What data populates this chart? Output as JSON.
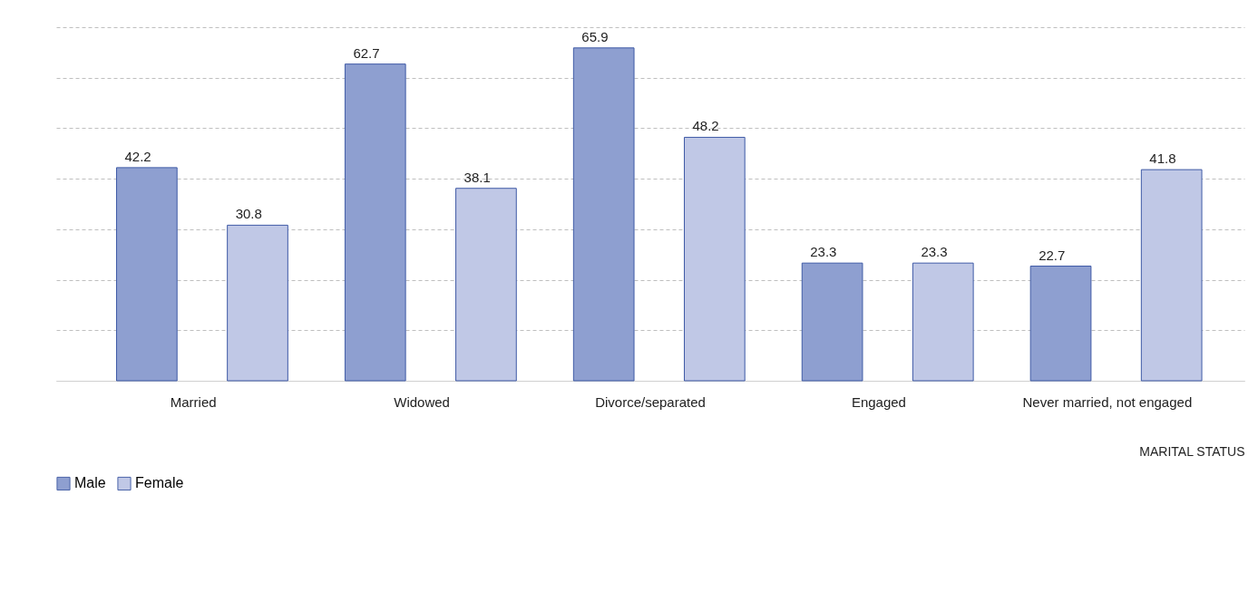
{
  "chart_data": {
    "type": "bar",
    "xlabel": "MARITAL STATUS",
    "categories": [
      "Married",
      "Widowed",
      "Divorce/separated",
      "Engaged",
      "Never married, not engaged"
    ],
    "series": [
      {
        "name": "Male",
        "color": "#8e9fd0",
        "values": [
          42.2,
          62.7,
          65.9,
          23.3,
          22.7
        ]
      },
      {
        "name": "Female",
        "color": "#c0c8e6",
        "values": [
          30.8,
          38.1,
          48.2,
          23.3,
          41.8
        ]
      }
    ],
    "ylim": [
      0,
      70
    ],
    "yticks": [
      {
        "value": 0,
        "label": null
      },
      {
        "value": 10,
        "label": null
      },
      {
        "value": 20,
        "label": null
      },
      {
        "value": 30,
        "label": null
      },
      {
        "value": 40,
        "label": null
      },
      {
        "value": 50,
        "label": null
      },
      {
        "value": 60,
        "label": null
      },
      {
        "value": 70,
        "label": null
      }
    ],
    "grid": "y",
    "legend": "bottom",
    "data_labels": true,
    "tick_labels": "x"
  }
}
